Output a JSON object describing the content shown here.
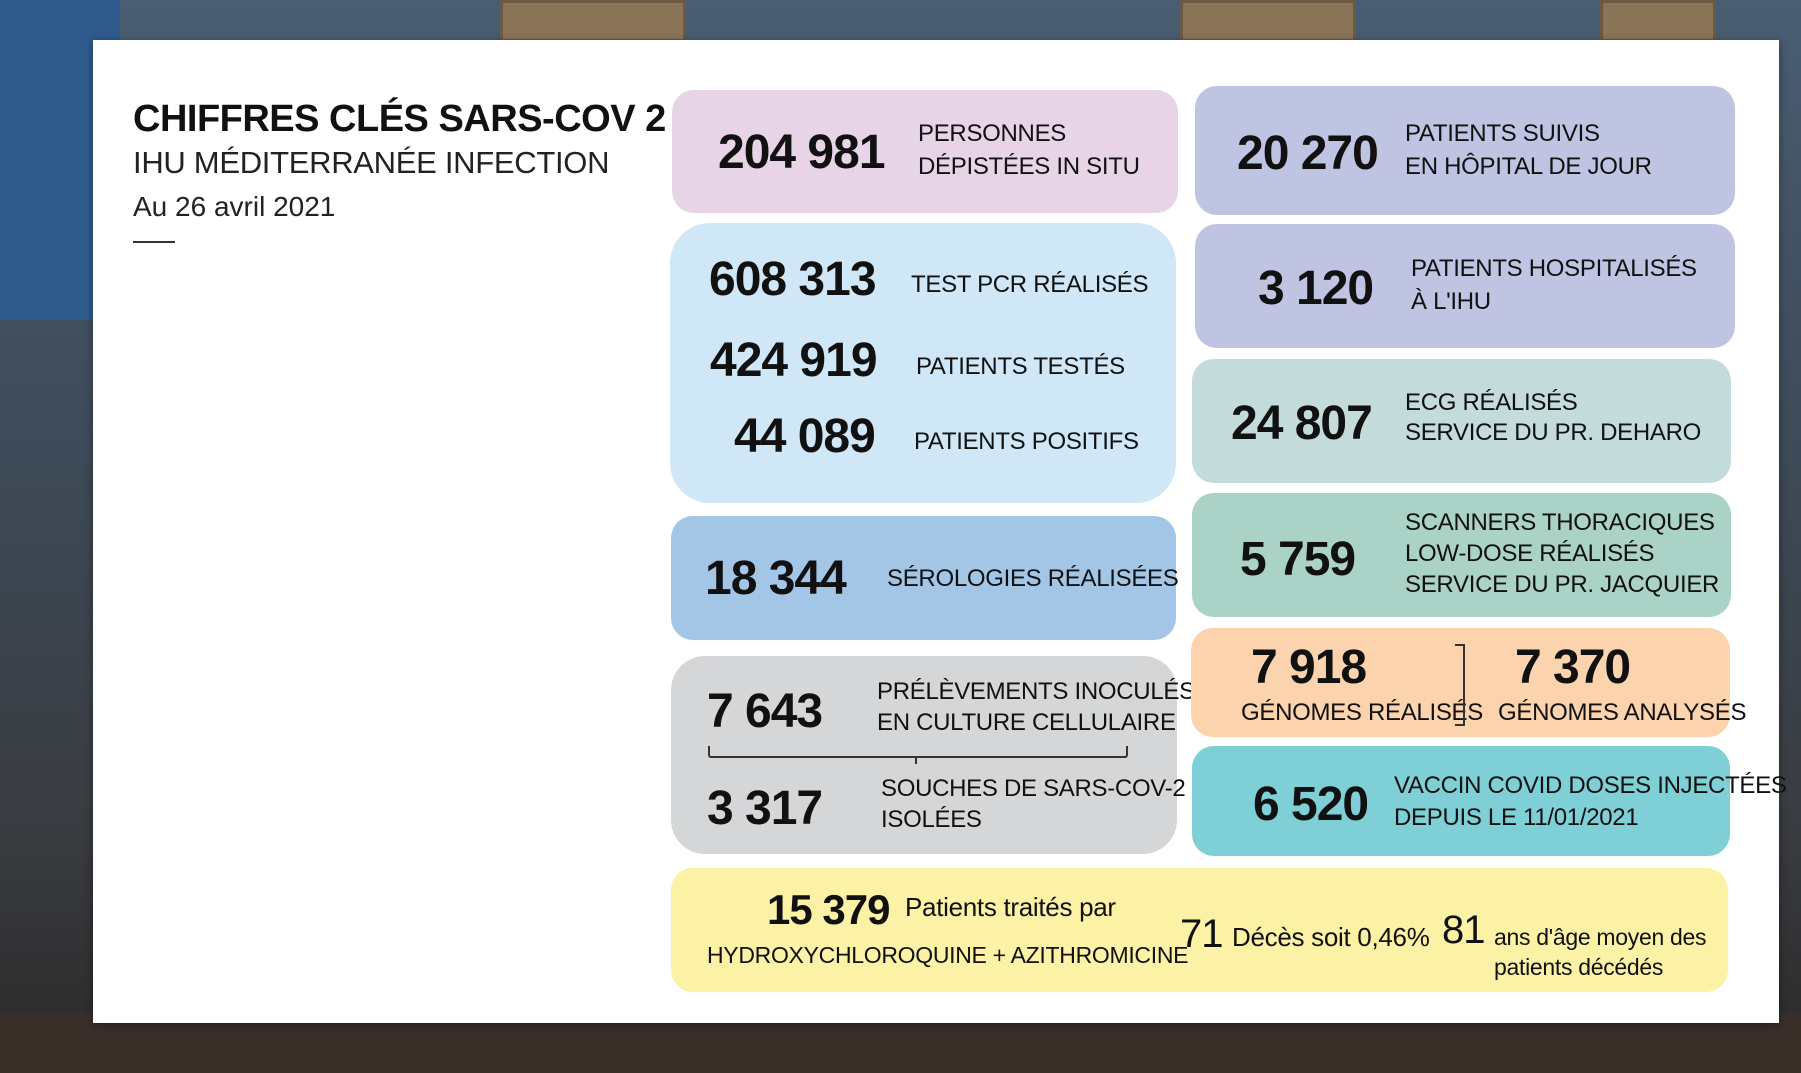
{
  "title": {
    "main": "CHIFFRES CLÉS SARS-COV 2",
    "sub": "IHU MÉDITERRANÉE INFECTION",
    "date": "Au 26 avril 2021"
  },
  "depistees": {
    "value": "204 981",
    "line1": "PERSONNES",
    "line2": "DÉPISTÉES IN SITU"
  },
  "pcr": {
    "tests_value": "608 313",
    "tests_label": "TEST PCR RÉALISÉS",
    "patients_value": "424 919",
    "patients_label": "PATIENTS TESTÉS",
    "positifs_value": "44 089",
    "positifs_label": "PATIENTS POSITIFS"
  },
  "serologies": {
    "value": "18 344",
    "label": "SÉROLOGIES RÉALISÉES"
  },
  "culture": {
    "prelev_value": "7 643",
    "prelev_line1": "PRÉLÈVEMENTS INOCULÉS",
    "prelev_line2": "EN CULTURE CELLULAIRE",
    "souches_value": "3 317",
    "souches_line1": "SOUCHES DE SARS-COV-2",
    "souches_line2": "ISOLÉES"
  },
  "hopital_jour": {
    "value": "20 270",
    "line1": "PATIENTS SUIVIS",
    "line2": "EN HÔPITAL DE JOUR"
  },
  "hospitalises": {
    "value": "3 120",
    "line1": "PATIENTS HOSPITALISÉS",
    "line2": "À L'IHU"
  },
  "ecg": {
    "value": "24 807",
    "line1": "ECG RÉALISÉS",
    "line2": "SERVICE DU PR. DEHARO"
  },
  "scanners": {
    "value": "5 759",
    "line1": "SCANNERS THORACIQUES",
    "line2": "LOW-DOSE RÉALISÉS",
    "line3": "SERVICE DU PR. JACQUIER"
  },
  "genomes": {
    "realises_value": "7 918",
    "realises_label": "GÉNOMES RÉALISÉS",
    "analyses_value": "7 370",
    "analyses_label": "GÉNOMES ANALYSÉS"
  },
  "vaccin": {
    "value": "6 520",
    "line1": "VACCIN COVID DOSES INJECTÉES",
    "line2": "DEPUIS LE 11/01/2021"
  },
  "traitement": {
    "value": "15 379",
    "label": "Patients traités par",
    "drugs": "HYDROXYCHLOROQUINE + AZITHROMICINE",
    "deces_value": "71",
    "deces_label": "Décès soit 0,46%",
    "age_value": "81",
    "age_line1": "ans d'âge moyen des",
    "age_line2": "patients décédés"
  },
  "colors": {
    "pink": "#e7d5e7",
    "lavender": "#c0c4e3",
    "light_blue": "#cfe7f7",
    "blue": "#a3c6e7",
    "gray": "#d5d6d8",
    "gray_blue": "#c4dbdb",
    "green": "#aad2c6",
    "orange": "#fbd3ac",
    "teal": "#7ecfd6",
    "yellow": "#fbf2a6"
  }
}
